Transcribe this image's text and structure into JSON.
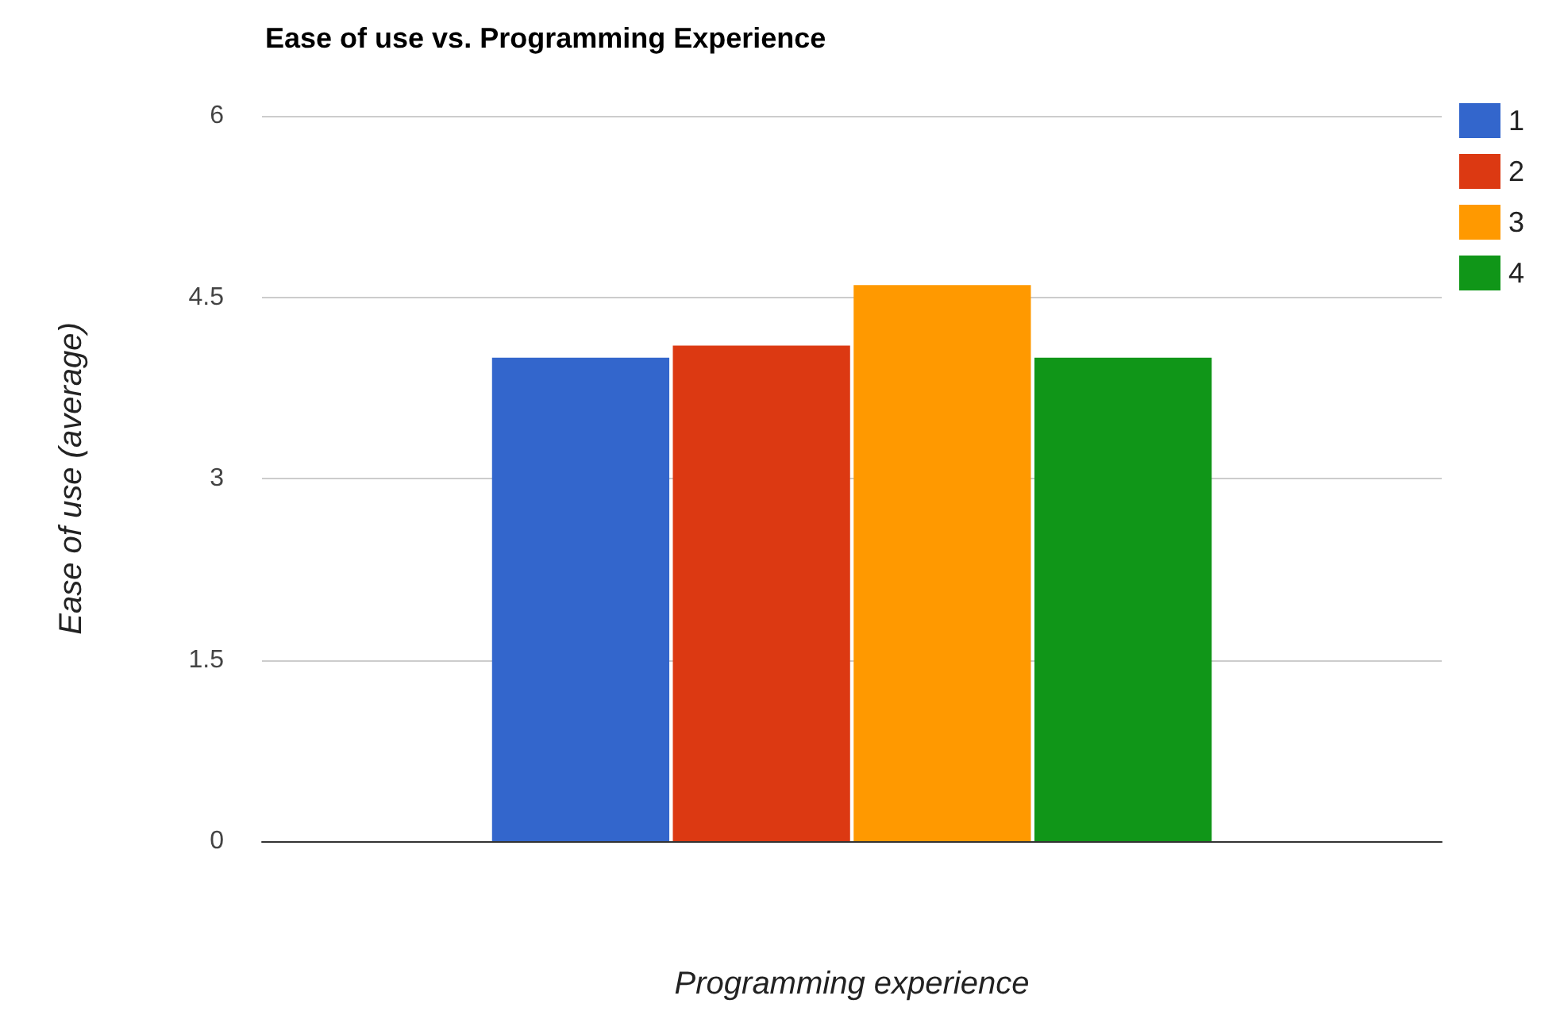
{
  "chart_data": {
    "type": "bar",
    "title": "Ease of use vs. Programming Experience",
    "xlabel": "Programming experience",
    "ylabel": "Ease of use (average)",
    "categories": [
      null
    ],
    "series": [
      {
        "name": "1",
        "color": "#3366cc",
        "values": [
          4.0
        ]
      },
      {
        "name": "2",
        "color": "#dc3912",
        "values": [
          4.1
        ]
      },
      {
        "name": "3",
        "color": "#ff9900",
        "values": [
          4.6
        ]
      },
      {
        "name": "4",
        "color": "#109618",
        "values": [
          4.0
        ]
      }
    ],
    "ylim": [
      0,
      6
    ],
    "yticks": [
      0,
      1.5,
      3,
      4.5,
      6
    ],
    "grid": "y",
    "legend": "top right"
  }
}
